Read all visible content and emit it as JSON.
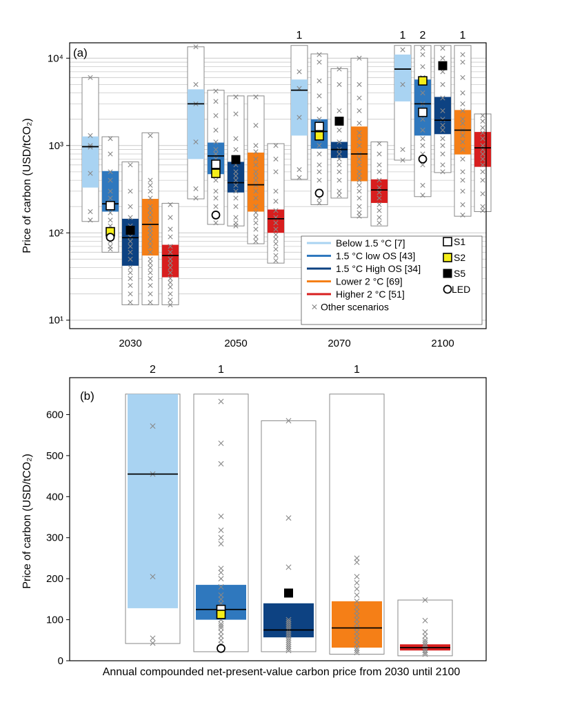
{
  "chart_data": [
    {
      "type": "box",
      "panel_label": "(a)",
      "ylabel": "Price of carbon (USD/tCO₂)",
      "yscale": "log",
      "ylim": [
        8,
        15000
      ],
      "yticks": [
        "10¹",
        "10²",
        "10³",
        "10⁴"
      ],
      "categories": [
        "2030",
        "2050",
        "2070",
        "2100"
      ],
      "series_order": [
        "Below 1.5 °C",
        "1.5 °C low OS",
        "1.5 °C High OS",
        "Lower 2 °C",
        "Higher 2 °C"
      ],
      "colors": [
        "#a9d3f2",
        "#2f78be",
        "#0d4282",
        "#f57f17",
        "#d81e1e"
      ],
      "outlier_counts": [
        {
          "category": "2070",
          "series": 0,
          "count": "1"
        },
        {
          "category": "2100",
          "series": 0,
          "count": "1"
        },
        {
          "category": "2100",
          "series": 1,
          "count": "2"
        },
        {
          "category": "2100",
          "series": 3,
          "count": "1"
        }
      ],
      "groups": [
        {
          "category": "2030",
          "boxes": [
            {
              "series": 0,
              "min": 135,
              "q1": 330,
              "median": 970,
              "q3": 1270,
              "max": 6000,
              "others": [
                6000,
                1300,
                1000,
                960,
                480,
                175,
                140
              ]
            },
            {
              "series": 1,
              "min": 60,
              "q1": 175,
              "median": 215,
              "q3": 510,
              "max": 1260,
              "others": [
                1200,
                800,
                500,
                400,
                300,
                250,
                210,
                190,
                170,
                140,
                120,
                100,
                90,
                80,
                70,
                65
              ]
            },
            {
              "series": 2,
              "min": 15,
              "q1": 42,
              "median": 88,
              "q3": 145,
              "max": 650,
              "others": [
                600,
                300,
                200,
                150,
                120,
                100,
                90,
                80,
                70,
                60,
                50,
                40,
                35,
                30,
                25,
                20,
                16
              ]
            },
            {
              "series": 3,
              "min": 15,
              "q1": 55,
              "median": 125,
              "q3": 245,
              "max": 1400,
              "others": [
                1300,
                400,
                350,
                300,
                250,
                200,
                180,
                160,
                140,
                120,
                110,
                100,
                90,
                80,
                70,
                60,
                50,
                45,
                40,
                35,
                30,
                25,
                20,
                16
              ]
            },
            {
              "series": 4,
              "min": 15,
              "q1": 31,
              "median": 55,
              "q3": 73,
              "max": 218,
              "others": [
                210,
                150,
                110,
                90,
                70,
                60,
                50,
                45,
                40,
                35,
                30,
                27,
                24,
                20,
                17,
                15
              ]
            }
          ],
          "markers": [
            {
              "label": "S1",
              "series": 1,
              "value": 205
            },
            {
              "label": "S2",
              "series": 1,
              "value": 103
            },
            {
              "label": "LED",
              "series": 1,
              "value": 89
            },
            {
              "label": "S5",
              "series": 2,
              "value": 107
            }
          ]
        },
        {
          "category": "2050",
          "boxes": [
            {
              "series": 0,
              "min": 245,
              "q1": 700,
              "median": 3000,
              "q3": 4400,
              "max": 13500,
              "others": [
                13500,
                5000,
                3000,
                1100,
                320,
                250
              ]
            },
            {
              "series": 1,
              "min": 125,
              "q1": 470,
              "median": 760,
              "q3": 1080,
              "max": 4300,
              "others": [
                4200,
                3200,
                2200,
                1500,
                1100,
                900,
                800,
                700,
                600,
                500,
                400,
                300,
                250,
                200,
                160,
                130
              ]
            },
            {
              "series": 2,
              "min": 120,
              "q1": 290,
              "median": 375,
              "q3": 650,
              "max": 3700,
              "others": [
                3600,
                2300,
                1200,
                900,
                700,
                600,
                500,
                450,
                400,
                350,
                300,
                250,
                200,
                150,
                130,
                120
              ]
            },
            {
              "series": 3,
              "min": 75,
              "q1": 175,
              "median": 355,
              "q3": 830,
              "max": 3700,
              "others": [
                3600,
                1700,
                1000,
                850,
                700,
                600,
                500,
                450,
                400,
                350,
                300,
                250,
                200,
                170,
                150,
                130,
                110,
                90,
                80
              ]
            },
            {
              "series": 4,
              "min": 45,
              "q1": 100,
              "median": 145,
              "q3": 185,
              "max": 1050,
              "others": [
                1000,
                700,
                500,
                300,
                230,
                180,
                150,
                130,
                110,
                95,
                85,
                75,
                65,
                55,
                48
              ]
            }
          ],
          "markers": [
            {
              "label": "S1",
              "series": 1,
              "value": 610
            },
            {
              "label": "S2",
              "series": 1,
              "value": 480
            },
            {
              "label": "LED",
              "series": 1,
              "value": 160
            },
            {
              "label": "S5",
              "series": 2,
              "value": 690
            }
          ]
        },
        {
          "category": "2070",
          "boxes": [
            {
              "series": 0,
              "min": 410,
              "q1": 1300,
              "median": 4300,
              "q3": 5700,
              "max": 14000,
              "others": [
                7000,
                4500,
                2100,
                530,
                430
              ]
            },
            {
              "series": 1,
              "min": 210,
              "q1": 920,
              "median": 1450,
              "q3": 2000,
              "max": 11200,
              "others": [
                11000,
                9000,
                5500,
                3700,
                2600,
                2000,
                1500,
                1200,
                1000,
                800,
                600,
                500,
                400,
                300,
                250,
                220
              ]
            },
            {
              "series": 2,
              "min": 250,
              "q1": 720,
              "median": 900,
              "q3": 1100,
              "max": 7600,
              "others": [
                7500,
                5000,
                2500,
                1500,
                1100,
                900,
                800,
                700,
                600,
                500,
                400,
                300,
                270
              ]
            },
            {
              "series": 3,
              "min": 150,
              "q1": 390,
              "median": 800,
              "q3": 1650,
              "max": 10000,
              "others": [
                10000,
                5000,
                3500,
                2500,
                1800,
                1400,
                1200,
                1000,
                800,
                700,
                600,
                500,
                450,
                400,
                350,
                300,
                250,
                200,
                170,
                155
              ]
            },
            {
              "series": 4,
              "min": 120,
              "q1": 220,
              "median": 310,
              "q3": 410,
              "max": 1100,
              "others": [
                1050,
                800,
                600,
                500,
                400,
                330,
                290,
                250,
                210,
                180,
                150,
                130
              ]
            }
          ],
          "markers": [
            {
              "label": "S1",
              "series": 1,
              "value": 1650
            },
            {
              "label": "S2",
              "series": 1,
              "value": 1290
            },
            {
              "label": "LED",
              "series": 1,
              "value": 285
            },
            {
              "label": "S5",
              "series": 2,
              "value": 1900
            }
          ]
        },
        {
          "category": "2100",
          "boxes": [
            {
              "series": 0,
              "min": 680,
              "q1": 3200,
              "median": 7500,
              "q3": 11000,
              "max": 14000,
              "others": [
                12500,
                5000,
                900,
                680
              ]
            },
            {
              "series": 1,
              "min": 260,
              "q1": 1300,
              "median": 3000,
              "q3": 5700,
              "max": 14000,
              "others": [
                13000,
                11000,
                8000,
                6000,
                4000,
                3000,
                2500,
                2000,
                1500,
                1200,
                1000,
                800,
                600,
                350,
                270
              ]
            },
            {
              "series": 2,
              "min": 490,
              "q1": 1350,
              "median": 1950,
              "q3": 3600,
              "max": 14000,
              "others": [
                13000,
                10000,
                7000,
                5000,
                3500,
                2500,
                2000,
                1700,
                1500,
                1200,
                1000,
                800,
                600,
                500
              ]
            },
            {
              "series": 3,
              "min": 155,
              "q1": 790,
              "median": 1500,
              "q3": 2550,
              "max": 14000,
              "others": [
                11000,
                9000,
                6000,
                4000,
                3000,
                2500,
                2000,
                1800,
                1500,
                1300,
                1100,
                900,
                700,
                500,
                400,
                300,
                210,
                160
              ]
            },
            {
              "series": 4,
              "min": 175,
              "q1": 570,
              "median": 940,
              "q3": 1430,
              "max": 2300,
              "others": [
                2200,
                1900,
                1600,
                1400,
                1200,
                1000,
                900,
                800,
                700,
                600,
                500,
                400,
                280,
                200,
                180
              ]
            }
          ],
          "markers": [
            {
              "label": "S1",
              "series": 1,
              "value": 2400
            },
            {
              "label": "S2",
              "series": 1,
              "value": 5500
            },
            {
              "label": "LED",
              "series": 1,
              "value": 700
            },
            {
              "label": "S5",
              "series": 2,
              "value": 8200
            }
          ]
        }
      ],
      "legend": {
        "placement": "bottom-right",
        "entries": [
          "Below 1.5 °C [7]",
          "1.5 °C low OS [43]",
          "1.5 °C High OS [34]",
          "Lower  2 °C [69]",
          "Higher  2 °C [51]",
          "Other scenarios"
        ],
        "marker_entries": [
          "S1",
          "S2",
          "S5",
          "LED"
        ]
      }
    },
    {
      "type": "box",
      "panel_label": "(b)",
      "ylabel": "Price of carbon (USD/tCO₂)",
      "xlabel": "Annual compounded net-present-value carbon price from 2030 until 2100",
      "ylim": [
        0,
        690
      ],
      "yticks": [
        0,
        100,
        200,
        300,
        400,
        500,
        600
      ],
      "outlier_counts": [
        {
          "series": 0,
          "count": "2"
        },
        {
          "series": 1,
          "count": "1"
        },
        {
          "series": 3,
          "count": "1"
        }
      ],
      "boxes": [
        {
          "series": 0,
          "min": 42,
          "q1": 128,
          "median": 455,
          "q3": 650,
          "max": 650,
          "others": [
            572,
            455,
            205,
            55,
            43
          ]
        },
        {
          "series": 1,
          "min": 22,
          "q1": 100,
          "median": 125,
          "q3": 185,
          "max": 650,
          "others": [
            632,
            530,
            480,
            352,
            318,
            300,
            285,
            225,
            215,
            200,
            180,
            160,
            150,
            140,
            130,
            120,
            110,
            100,
            90,
            85,
            80,
            70,
            60,
            50,
            40,
            30
          ]
        },
        {
          "series": 2,
          "min": 22,
          "q1": 57,
          "median": 75,
          "q3": 140,
          "max": 585,
          "others": [
            585,
            348,
            228,
            100,
            95,
            90,
            85,
            80,
            75,
            70,
            65,
            60,
            55,
            50,
            45,
            40,
            35,
            30,
            25
          ]
        },
        {
          "series": 3,
          "min": 16,
          "q1": 32,
          "median": 80,
          "q3": 145,
          "max": 650,
          "others": [
            250,
            240,
            205,
            190,
            175,
            160,
            145,
            130,
            120,
            110,
            100,
            90,
            80,
            70,
            60,
            50,
            40,
            30,
            25,
            20
          ]
        },
        {
          "series": 4,
          "min": 12,
          "q1": 25,
          "median": 32,
          "q3": 40,
          "max": 148,
          "others": [
            148,
            98,
            70,
            60,
            50,
            45,
            40,
            35,
            30,
            25,
            20,
            16
          ]
        }
      ],
      "markers": [
        {
          "label": "S1",
          "series": 1,
          "value": 125
        },
        {
          "label": "S2",
          "series": 1,
          "value": 113
        },
        {
          "label": "LED",
          "series": 1,
          "value": 30
        },
        {
          "label": "S5",
          "series": 2,
          "value": 165
        }
      ]
    }
  ]
}
